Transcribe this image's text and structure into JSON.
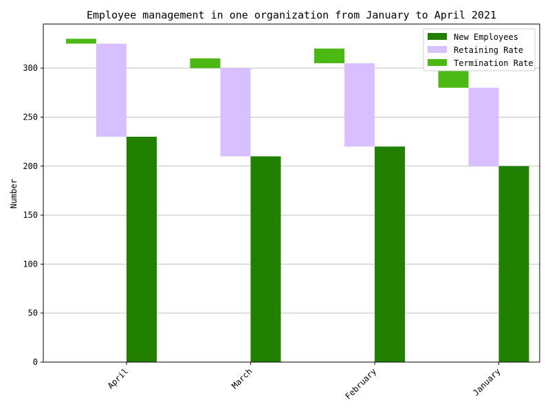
{
  "chart_data": {
    "type": "bar",
    "title": "Employee management in one organization from January to April 2021",
    "xlabel": "",
    "ylabel": "Number",
    "categories": [
      "April",
      "March",
      "February",
      "January"
    ],
    "series": [
      {
        "name": "New Employees",
        "color": "#228000",
        "bottoms": [
          0,
          0,
          0,
          0
        ],
        "values": [
          230,
          210,
          220,
          200
        ]
      },
      {
        "name": "Retaining Rate",
        "color": "#d8bfff",
        "bottoms": [
          230,
          210,
          220,
          200
        ],
        "values": [
          325,
          300,
          305,
          280
        ]
      },
      {
        "name": "Termination Rate",
        "color": "#4cb814",
        "bottoms": [
          325,
          300,
          305,
          280
        ],
        "values": [
          330,
          310,
          320,
          300
        ]
      }
    ],
    "ylim": [
      0,
      345
    ],
    "yticks": [
      0,
      50,
      100,
      150,
      200,
      250,
      300
    ],
    "grid": "horizontal",
    "legend_position": "top-right"
  }
}
